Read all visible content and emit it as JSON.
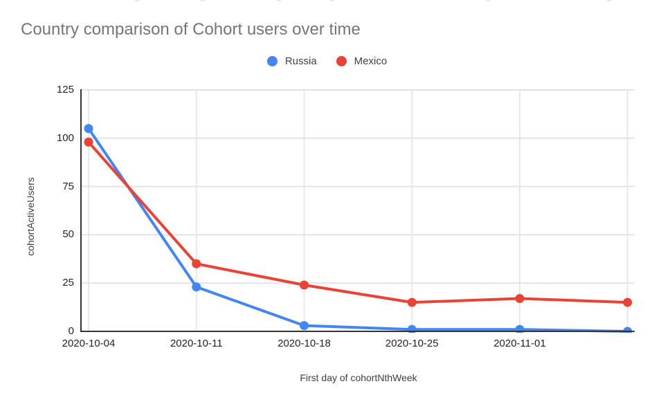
{
  "page": {
    "background": "#ffffff"
  },
  "header": {
    "title": "Country comparison of Cohort users over time",
    "title_color": "#757575"
  },
  "legend": {
    "items": [
      {
        "label": "Russia",
        "color": "#4285F4"
      },
      {
        "label": "Mexico",
        "color": "#EA4335"
      }
    ]
  },
  "chart_data": {
    "type": "line",
    "title": "Country comparison of Cohort users over time",
    "xlabel": "First day of cohortNthWeek",
    "ylabel": "cohortActiveUsers",
    "categories": [
      "2020-10-04",
      "2020-10-11",
      "2020-10-18",
      "2020-10-25",
      "2020-11-01",
      ""
    ],
    "series": [
      {
        "name": "Russia",
        "color": "#4285F4",
        "values": [
          105,
          23,
          3,
          1,
          1,
          0
        ]
      },
      {
        "name": "Mexico",
        "color": "#EA4335",
        "values": [
          98,
          35,
          24,
          15,
          17,
          15
        ]
      }
    ],
    "y_ticks": [
      0,
      25,
      50,
      75,
      100,
      125
    ],
    "ylim": [
      0,
      125
    ],
    "grid": true,
    "legend_position": "top",
    "note": "sixth data point at right edge has no x-axis label"
  },
  "artifact_marks_x": [
    195,
    290,
    400,
    477,
    703,
    877
  ],
  "colors": {
    "h_gridline": "#e3e3e3",
    "v_gridline": "#e8e8e8",
    "axis_line": "#333333",
    "tick_text": "#222222",
    "axis_title_text": "#3c3c3c"
  }
}
